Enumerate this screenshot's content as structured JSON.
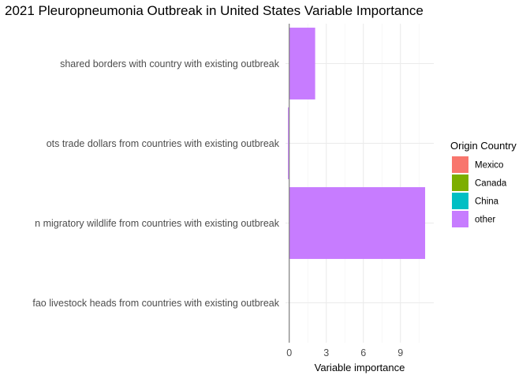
{
  "chart_data": {
    "type": "bar",
    "orientation": "horizontal",
    "title": "2021 Pleuropneumonia Outbreak in United States Variable Importance",
    "xlabel": "Variable importance",
    "ylabel": "",
    "categories": [
      "shared borders with country with existing outbreak",
      "ots trade dollars from countries with existing outbreak",
      "n migratory wildlife from countries with existing outbreak",
      "fao livestock heads from countries with existing outbreak"
    ],
    "values": [
      2.1,
      -0.1,
      11.0,
      0.0
    ],
    "bar_origin": [
      "other",
      "other",
      "other",
      "other"
    ],
    "xlim": [
      -0.3,
      11.7
    ],
    "xticks": [
      0,
      3,
      6,
      9
    ],
    "grid": true,
    "legend": {
      "title": "Origin Country",
      "placement": "right",
      "entries": [
        {
          "label": "Mexico",
          "color": "#F8766D"
        },
        {
          "label": "Canada",
          "color": "#7CAE00"
        },
        {
          "label": "China",
          "color": "#00BFC4"
        },
        {
          "label": "other",
          "color": "#C77CFF"
        }
      ]
    }
  }
}
